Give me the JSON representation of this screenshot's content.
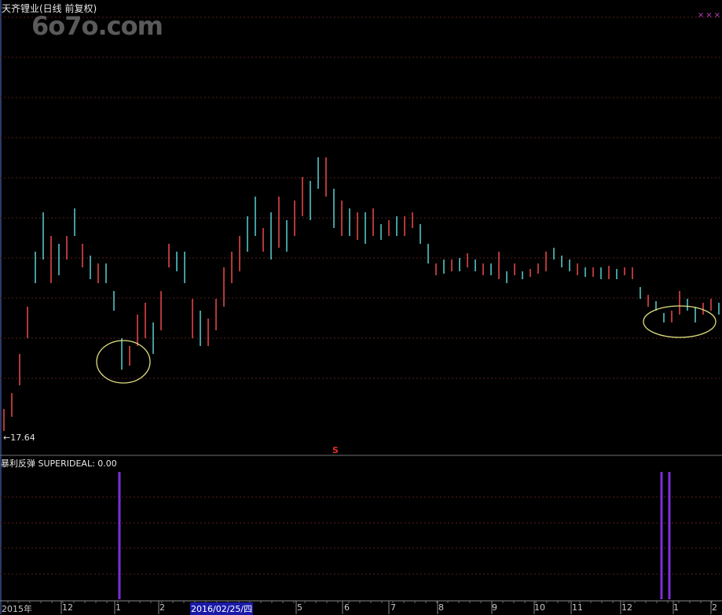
{
  "header": {
    "title": "天齐锂业(日线 前复权)",
    "watermark": "6o7o.com",
    "corner_marks": "×××"
  },
  "main_panel": {
    "low_label": "←17.64",
    "event_marker": "S",
    "colors": {
      "up": "#ff5050",
      "down": "#60e0e0",
      "background": "#000000",
      "grid": "#5a1e1e",
      "highlight_ellipse": "#e0e080"
    }
  },
  "indicator_panel": {
    "title": "暴利反弹  SUPERIDEAL: 0.00",
    "signal_color": "#7b2fd8"
  },
  "x_axis": {
    "labels": [
      "2015年",
      "12",
      "1",
      "2",
      "2016/02/25/四",
      "5",
      "6",
      "7",
      "8",
      "9",
      "10",
      "11",
      "12",
      "1",
      "2"
    ],
    "cursor_date": "2016/02/25/四"
  },
  "chart_data": {
    "type": "candlestick",
    "title": "天齐锂业(日线 前复权)",
    "min_price_label": 17.64,
    "bars_format": [
      "high",
      "low",
      "up"
    ],
    "bars": [
      [
        20.44,
        17.64,
        1
      ],
      [
        22.44,
        19.44,
        1
      ],
      [
        27.44,
        23.44,
        1
      ],
      [
        33.44,
        29.44,
        1
      ],
      [
        40.44,
        36.44,
        0
      ],
      [
        45.44,
        39.44,
        0
      ],
      [
        42.44,
        36.44,
        1
      ],
      [
        41.44,
        37.44,
        0
      ],
      [
        42.44,
        39.44,
        1
      ],
      [
        45.94,
        42.44,
        0
      ],
      [
        41.44,
        38.44,
        1
      ],
      [
        39.94,
        36.94,
        0
      ],
      [
        38.94,
        36.44,
        1
      ],
      [
        38.94,
        36.44,
        0
      ],
      [
        35.44,
        32.94,
        0
      ],
      [
        29.44,
        25.44,
        0
      ],
      [
        28.44,
        25.94,
        1
      ],
      [
        32.44,
        28.44,
        1
      ],
      [
        33.94,
        29.44,
        1
      ],
      [
        31.44,
        27.44,
        0
      ],
      [
        35.44,
        30.44,
        1
      ],
      [
        41.44,
        38.44,
        1
      ],
      [
        40.44,
        37.94,
        0
      ],
      [
        40.44,
        36.44,
        0
      ],
      [
        34.44,
        29.44,
        1
      ],
      [
        32.94,
        28.44,
        0
      ],
      [
        31.94,
        28.44,
        1
      ],
      [
        34.44,
        30.44,
        1
      ],
      [
        38.44,
        33.44,
        1
      ],
      [
        40.44,
        36.44,
        1
      ],
      [
        42.44,
        37.94,
        1
      ],
      [
        44.94,
        40.44,
        0
      ],
      [
        47.44,
        42.44,
        0
      ],
      [
        43.44,
        40.44,
        1
      ],
      [
        45.44,
        39.44,
        0
      ],
      [
        47.44,
        40.94,
        1
      ],
      [
        44.44,
        40.44,
        0
      ],
      [
        46.94,
        42.44,
        1
      ],
      [
        49.94,
        44.94,
        1
      ],
      [
        49.44,
        44.44,
        0
      ],
      [
        52.44,
        48.44,
        0
      ],
      [
        52.44,
        47.44,
        1
      ],
      [
        48.44,
        43.44,
        0
      ],
      [
        46.94,
        42.44,
        1
      ],
      [
        45.94,
        42.44,
        0
      ],
      [
        45.44,
        41.94,
        1
      ],
      [
        45.44,
        41.44,
        0
      ],
      [
        45.94,
        42.44,
        1
      ],
      [
        43.94,
        41.94,
        0
      ],
      [
        44.44,
        42.44,
        1
      ],
      [
        44.94,
        42.44,
        0
      ],
      [
        44.94,
        42.44,
        1
      ],
      [
        45.44,
        43.44,
        1
      ],
      [
        43.94,
        41.44,
        0
      ],
      [
        41.44,
        38.94,
        0
      ],
      [
        38.94,
        37.44,
        1
      ],
      [
        39.44,
        37.64,
        0
      ],
      [
        39.44,
        37.94,
        1
      ],
      [
        39.64,
        37.94,
        0
      ],
      [
        40.24,
        38.44,
        1
      ],
      [
        39.44,
        37.94,
        0
      ],
      [
        38.94,
        37.44,
        1
      ],
      [
        38.94,
        37.44,
        0
      ],
      [
        40.44,
        36.94,
        1
      ],
      [
        37.94,
        36.44,
        0
      ],
      [
        38.94,
        37.44,
        1
      ],
      [
        37.94,
        36.94,
        0
      ],
      [
        38.24,
        37.24,
        1
      ],
      [
        38.94,
        37.64,
        1
      ],
      [
        40.44,
        37.94,
        1
      ],
      [
        40.94,
        39.44,
        0
      ],
      [
        39.94,
        38.44,
        0
      ],
      [
        39.44,
        37.94,
        0
      ],
      [
        38.94,
        37.44,
        1
      ],
      [
        38.44,
        37.24,
        0
      ],
      [
        38.44,
        37.24,
        1
      ],
      [
        38.44,
        36.94,
        0
      ],
      [
        38.64,
        36.94,
        1
      ],
      [
        38.24,
        36.94,
        0
      ],
      [
        38.44,
        37.44,
        1
      ],
      [
        38.44,
        36.94,
        1
      ],
      [
        35.94,
        34.44,
        0
      ],
      [
        34.94,
        33.44,
        1
      ],
      [
        34.14,
        32.94,
        0
      ],
      [
        32.64,
        31.44,
        0
      ],
      [
        32.94,
        31.44,
        1
      ],
      [
        35.44,
        32.44,
        1
      ],
      [
        34.44,
        32.94,
        0
      ],
      [
        33.44,
        31.44,
        0
      ],
      [
        33.94,
        32.44,
        1
      ],
      [
        34.44,
        32.94,
        1
      ],
      [
        33.94,
        32.44,
        0
      ]
    ],
    "indicator": {
      "name": "SUPERIDEAL",
      "value": 0.0,
      "signal_bar_indices": [
        15,
        84,
        85
      ]
    },
    "grid": true
  }
}
